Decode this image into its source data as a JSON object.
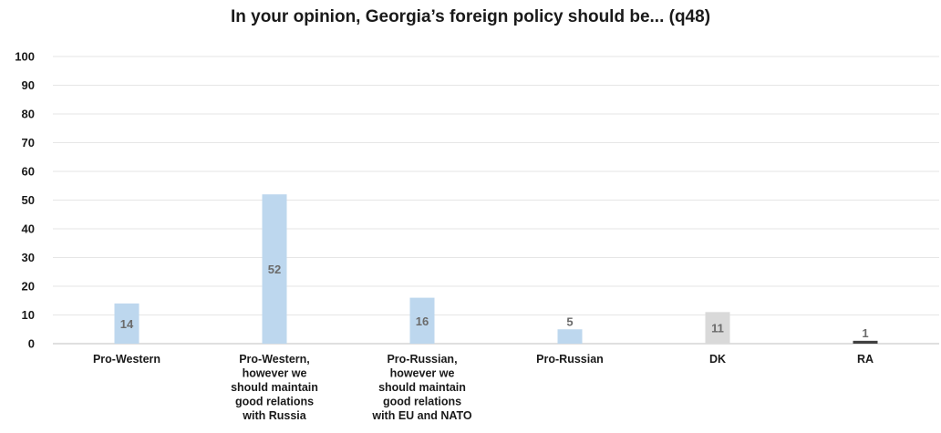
{
  "chart_data": {
    "type": "bar",
    "title": "In your opinion, Georgia’s foreign policy should be... (q48)",
    "xlabel": "",
    "ylabel": "",
    "ylim": [
      0,
      100
    ],
    "yticks": [
      0,
      10,
      20,
      30,
      40,
      50,
      60,
      70,
      80,
      90,
      100
    ],
    "grid": true,
    "legend": "none",
    "categories": [
      [
        "Pro-Western"
      ],
      [
        "Pro-Western,",
        "however we",
        "should maintain",
        "good relations",
        "with Russia"
      ],
      [
        "Pro-Russian,",
        "however we",
        "should maintain",
        "good relations",
        "with EU and NATO"
      ],
      [
        "Pro-Russian"
      ],
      [
        "DK"
      ],
      [
        "RA"
      ]
    ],
    "values": [
      14,
      52,
      16,
      5,
      11,
      1
    ],
    "colors": [
      "#bdd7ee",
      "#bdd7ee",
      "#bdd7ee",
      "#bdd7ee",
      "#d9d9d9",
      "#404040"
    ]
  }
}
